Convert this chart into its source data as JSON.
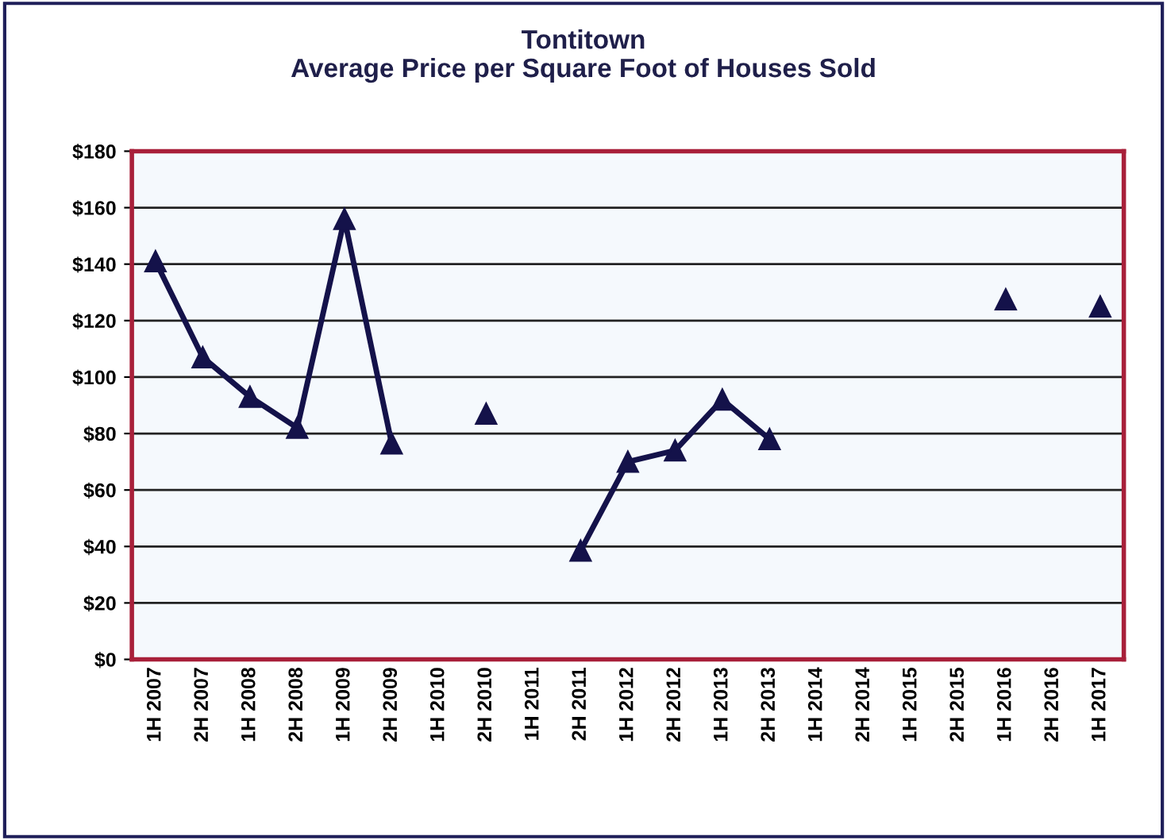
{
  "chart_data": {
    "type": "line",
    "title": "Tontitown\nAverage Price per Square Foot of Houses Sold",
    "categories": [
      "1H 2007",
      "2H 2007",
      "1H 2008",
      "2H 2008",
      "1H 2009",
      "2H 2009",
      "1H 2010",
      "2H 2010",
      "1H 2011",
      "2H 2011",
      "1H 2012",
      "2H 2012",
      "1H 2013",
      "2H 2013",
      "1H 2014",
      "2H 2014",
      "1H 2015",
      "2H 2015",
      "1H 2016",
      "2H 2016",
      "1H 2017"
    ],
    "series": [
      {
        "color": "#14124a",
        "values": [
          141,
          107,
          93,
          82,
          156,
          76.5,
          null,
          87,
          null,
          38.5,
          70,
          74,
          92,
          78,
          null,
          null,
          null,
          null,
          127.5,
          null,
          125
        ]
      }
    ],
    "ylim": [
      0,
      180
    ],
    "yticks": [
      {
        "value": 0,
        "label": "$0"
      },
      {
        "value": 20,
        "label": "$20"
      },
      {
        "value": 40,
        "label": "$40"
      },
      {
        "value": 60,
        "label": "$60"
      },
      {
        "value": 80,
        "label": "$80"
      },
      {
        "value": 100,
        "label": "$100"
      },
      {
        "value": 120,
        "label": "$120"
      },
      {
        "value": 140,
        "label": "$140"
      },
      {
        "value": 160,
        "label": "$160"
      },
      {
        "value": 180,
        "label": "$180"
      }
    ],
    "grid": "y",
    "marker": "triangle",
    "line_style": "solid",
    "legend": false
  }
}
